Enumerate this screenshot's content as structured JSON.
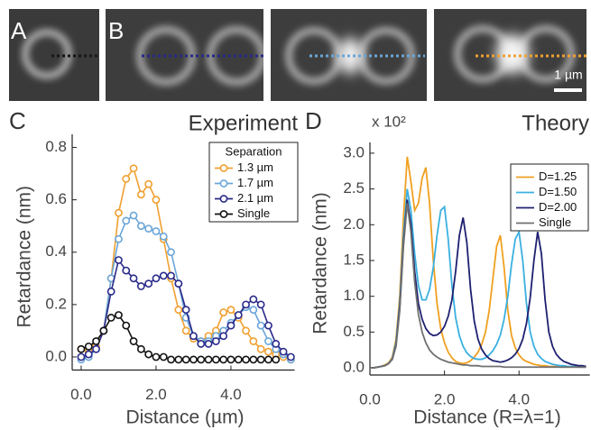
{
  "figure": {
    "panel_labels": [
      "A",
      "B",
      "C",
      "D"
    ],
    "scale_bar": "1 µm"
  },
  "chart_data": [
    {
      "type": "line",
      "title": "Experiment",
      "x_label": "Distance (µm)",
      "y_label": "Retardance (nm)",
      "legend_title": "Separation",
      "legend": "upper right",
      "markers": true,
      "x": [
        0,
        0.2,
        0.4,
        0.6,
        0.8,
        1.0,
        1.2,
        1.4,
        1.6,
        1.8,
        2.0,
        2.2,
        2.4,
        2.6,
        2.8,
        3.0,
        3.2,
        3.4,
        3.6,
        3.8,
        4.0,
        4.2,
        4.4,
        4.6,
        4.8,
        5.0,
        5.2,
        5.4,
        5.6
      ],
      "series": [
        {
          "name": "1.3 µm",
          "color": "#f0a030",
          "values": [
            0.03,
            0.02,
            0.04,
            0.1,
            0.3,
            0.55,
            0.68,
            0.72,
            0.62,
            0.66,
            0.6,
            0.45,
            0.3,
            0.18,
            0.1,
            0.07,
            0.06,
            0.08,
            0.1,
            0.17,
            0.18,
            0.15,
            0.1,
            0.06,
            0.03,
            0.02,
            0.01,
            0.0,
            -0.01
          ]
        },
        {
          "name": "1.7 µm",
          "color": "#6aa6d8",
          "values": [
            -0.01,
            0.0,
            0.03,
            0.1,
            0.3,
            0.45,
            0.52,
            0.54,
            0.5,
            0.49,
            0.48,
            0.46,
            0.4,
            0.28,
            0.15,
            0.08,
            0.06,
            0.06,
            0.08,
            0.1,
            0.13,
            0.16,
            0.19,
            0.18,
            0.12,
            0.06,
            0.03,
            0.01,
            -0.01
          ]
        },
        {
          "name": "2.1 µm",
          "color": "#2a2a8a",
          "values": [
            0.0,
            0.01,
            0.03,
            0.1,
            0.25,
            0.37,
            0.33,
            0.3,
            0.27,
            0.28,
            0.3,
            0.31,
            0.31,
            0.28,
            0.18,
            0.08,
            0.05,
            0.05,
            0.06,
            0.08,
            0.12,
            0.16,
            0.2,
            0.22,
            0.2,
            0.12,
            0.05,
            0.02,
            0.0
          ]
        },
        {
          "name": "Single",
          "color": "#111111",
          "values": [
            0.03,
            0.04,
            0.06,
            0.1,
            0.15,
            0.16,
            0.12,
            0.06,
            0.03,
            0.01,
            0.0,
            0.0,
            -0.01,
            -0.01,
            -0.01,
            -0.01,
            -0.01,
            -0.01,
            -0.01,
            -0.01,
            -0.01,
            -0.01,
            -0.01,
            -0.01,
            -0.01,
            -0.01,
            -0.01,
            null,
            null
          ]
        }
      ],
      "xlim": [
        -0.24,
        5.7
      ],
      "ylim": [
        -0.05,
        0.85
      ],
      "xticks": [
        {
          "value": 0,
          "label": "0.0"
        },
        {
          "value": 2,
          "label": "2.0"
        },
        {
          "value": 4,
          "label": "4.0"
        }
      ],
      "yticks": [
        {
          "value": 0,
          "label": "0.0"
        },
        0.2,
        0.4,
        0.6,
        0.8
      ]
    },
    {
      "type": "line",
      "title": "Theory",
      "annotation": "x 10²",
      "x_label": "Distance (R=λ=1)",
      "y_label": "Retardance (nm)",
      "legend": "upper right",
      "markers": false,
      "x": [
        0,
        0.1,
        0.2,
        0.3,
        0.4,
        0.5,
        0.6,
        0.7,
        0.8,
        0.9,
        1.0,
        1.1,
        1.2,
        1.3,
        1.4,
        1.5,
        1.6,
        1.7,
        1.8,
        1.9,
        2.0,
        2.1,
        2.2,
        2.3,
        2.4,
        2.5,
        2.6,
        2.7,
        2.8,
        2.9,
        3.0,
        3.1,
        3.2,
        3.3,
        3.4,
        3.5,
        3.6,
        3.7,
        3.8,
        3.9,
        4.0,
        4.1,
        4.2,
        4.3,
        4.4,
        4.5,
        4.6,
        4.7,
        4.8,
        4.9,
        5.0,
        5.1,
        5.2,
        5.3,
        5.4,
        5.5,
        5.6,
        5.7,
        5.8
      ],
      "series": [
        {
          "name": "D=1.25",
          "color": "#f0a020",
          "values": [
            0,
            0,
            0.01,
            0.02,
            0.04,
            0.07,
            0.15,
            0.4,
            1.0,
            2.1,
            2.95,
            2.6,
            2.2,
            2.3,
            2.65,
            2.8,
            2.3,
            1.5,
            0.9,
            0.55,
            0.35,
            0.22,
            0.14,
            0.09,
            0.07,
            0.06,
            0.07,
            0.1,
            0.15,
            0.22,
            0.33,
            0.5,
            0.8,
            1.25,
            1.7,
            1.85,
            1.4,
            0.8,
            0.45,
            0.28,
            0.18,
            0.12,
            0.09,
            0.07,
            0.05,
            0.04,
            0.03,
            0.03,
            0.02,
            0.02,
            0.02,
            0.01,
            0.01,
            0.01,
            0.01,
            0.01,
            0.01,
            0.01,
            0.01
          ]
        },
        {
          "name": "D=1.50",
          "color": "#3ab0e0",
          "values": [
            0,
            0,
            0.01,
            0.02,
            0.03,
            0.06,
            0.13,
            0.35,
            0.9,
            1.85,
            2.5,
            2.2,
            1.6,
            1.15,
            0.95,
            0.95,
            1.1,
            1.4,
            1.85,
            2.2,
            2.25,
            1.8,
            1.15,
            0.7,
            0.45,
            0.3,
            0.21,
            0.16,
            0.13,
            0.12,
            0.12,
            0.14,
            0.18,
            0.24,
            0.33,
            0.46,
            0.68,
            1.0,
            1.45,
            1.8,
            1.9,
            1.5,
            0.9,
            0.5,
            0.3,
            0.19,
            0.13,
            0.09,
            0.07,
            0.05,
            0.04,
            0.03,
            0.03,
            0.02,
            0.02,
            0.02,
            0.01,
            0.01,
            0.01
          ]
        },
        {
          "name": "D=2.00",
          "color": "#1f2070",
          "values": [
            0,
            0,
            0.01,
            0.02,
            0.03,
            0.06,
            0.12,
            0.32,
            0.85,
            1.75,
            2.35,
            2.0,
            1.35,
            0.9,
            0.68,
            0.55,
            0.48,
            0.45,
            0.46,
            0.5,
            0.58,
            0.72,
            0.95,
            1.35,
            1.85,
            2.1,
            1.75,
            1.1,
            0.65,
            0.4,
            0.26,
            0.18,
            0.13,
            0.1,
            0.09,
            0.08,
            0.09,
            0.11,
            0.14,
            0.19,
            0.27,
            0.4,
            0.62,
            0.98,
            1.5,
            1.9,
            1.6,
            0.95,
            0.5,
            0.3,
            0.19,
            0.13,
            0.09,
            0.07,
            0.05,
            0.04,
            0.03,
            0.03,
            0.02
          ]
        },
        {
          "name": "Single",
          "color": "#707070",
          "values": [
            0,
            0,
            0.01,
            0.02,
            0.03,
            0.06,
            0.12,
            0.3,
            0.8,
            1.7,
            2.3,
            1.9,
            1.2,
            0.75,
            0.5,
            0.35,
            0.25,
            0.19,
            0.15,
            0.12,
            0.1,
            0.08,
            0.07,
            0.06,
            0.05,
            0.04,
            0.04,
            0.03,
            0.03,
            0.03,
            0.02,
            0.02,
            0.02,
            0.02,
            0.02,
            0.02,
            0.01,
            0.01,
            0.01,
            0.01,
            0.01,
            0.01,
            0.01,
            0.01,
            0.01,
            0.01,
            0.01,
            0.01,
            0.01,
            0.01,
            0.01,
            0.01,
            0.01,
            0.01,
            0.01,
            0.01,
            0.01,
            0.01,
            0.01
          ]
        }
      ],
      "xlim": [
        0,
        5.9
      ],
      "ylim": [
        -0.1,
        3.15
      ],
      "xticks": [
        {
          "value": 0,
          "label": "0.0"
        },
        {
          "value": 2,
          "label": "2.0"
        },
        {
          "value": 4,
          "label": "4.0"
        }
      ],
      "yticks": [
        {
          "value": 0,
          "label": "0.0"
        },
        0.5,
        {
          "value": 1,
          "label": "1.0"
        },
        1.5,
        {
          "value": 2,
          "label": "2.0"
        },
        2.5,
        {
          "value": 3,
          "label": "3.0"
        }
      ]
    }
  ]
}
